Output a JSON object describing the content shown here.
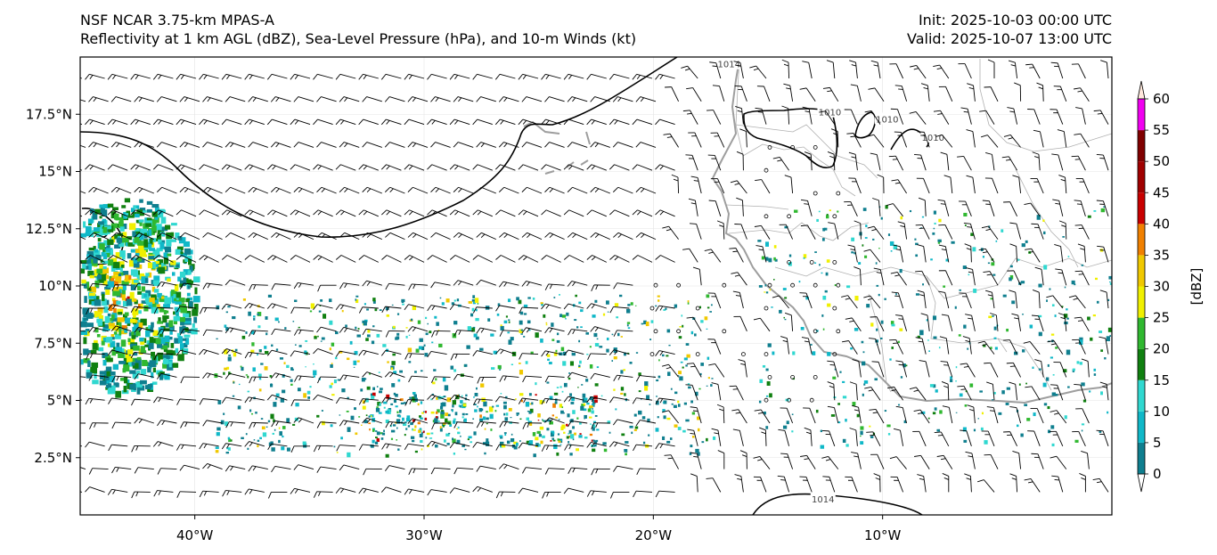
{
  "header": {
    "model": "NSF NCAR 3.75-km MPAS-A",
    "fields": "Reflectivity at 1 km AGL (dBZ), Sea-Level Pressure (hPa), and 10-m Winds (kt)",
    "init": "Init: 2025-10-03 00:00 UTC",
    "valid": "Valid: 2025-10-07 13:00 UTC"
  },
  "map": {
    "lon_range": [
      -45,
      0
    ],
    "lat_range": [
      0,
      20
    ],
    "lon_ticks": [
      {
        "lon": -40,
        "label": "40°W"
      },
      {
        "lon": -30,
        "label": "30°W"
      },
      {
        "lon": -20,
        "label": "20°W"
      },
      {
        "lon": -10,
        "label": "10°W"
      }
    ],
    "lat_ticks": [
      {
        "lat": 17.5,
        "label": "17.5°N"
      },
      {
        "lat": 15,
        "label": "15°N"
      },
      {
        "lat": 12.5,
        "label": "12.5°N"
      },
      {
        "lat": 10,
        "label": "10°N"
      },
      {
        "lat": 7.5,
        "label": "7.5°N"
      },
      {
        "lat": 5,
        "label": "5°N"
      },
      {
        "lat": 2.5,
        "label": "2.5°N"
      }
    ],
    "isobar_labels": [
      {
        "text": "1014",
        "lon": -16.7,
        "lat": 19.7
      },
      {
        "text": "1010",
        "lon": -9.8,
        "lat": 17.3
      },
      {
        "text": "1010",
        "lon": -12.3,
        "lat": 17.6
      },
      {
        "text": "1010",
        "lon": -7.8,
        "lat": 16.5
      },
      {
        "text": "1014",
        "lon": -12.6,
        "lat": 0.7
      }
    ]
  },
  "colorbar": {
    "label": "[dBZ]",
    "ticks": [
      "0",
      "5",
      "10",
      "15",
      "20",
      "25",
      "30",
      "35",
      "40",
      "45",
      "50",
      "55",
      "60"
    ],
    "colors": [
      "#0f7f8f",
      "#10b8c8",
      "#30d8d0",
      "#108010",
      "#30b830",
      "#f0f000",
      "#f0c800",
      "#f08000",
      "#c80000",
      "#a00000",
      "#800000",
      "#f000f0"
    ],
    "under_color": "#ffffff",
    "over_color": "#ffe8dc"
  }
}
